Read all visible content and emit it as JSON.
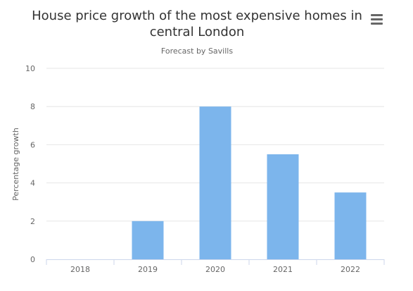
{
  "toolbar": {
    "menu_icon": "hamburger-menu-icon"
  },
  "chart_data": {
    "type": "bar",
    "title": "House price growth of the most expensive homes in central London",
    "subtitle": "Forecast by Savills",
    "xlabel": "",
    "ylabel": "Percentage growth",
    "categories": [
      "2018",
      "2019",
      "2020",
      "2021",
      "2022"
    ],
    "values": [
      0,
      2,
      8,
      5.5,
      3.5
    ],
    "ylim": [
      0,
      10
    ],
    "yticks": [
      0,
      2,
      4,
      6,
      8,
      10
    ],
    "grid": true,
    "legend": "none",
    "bar_color": "#7cb5ec"
  }
}
